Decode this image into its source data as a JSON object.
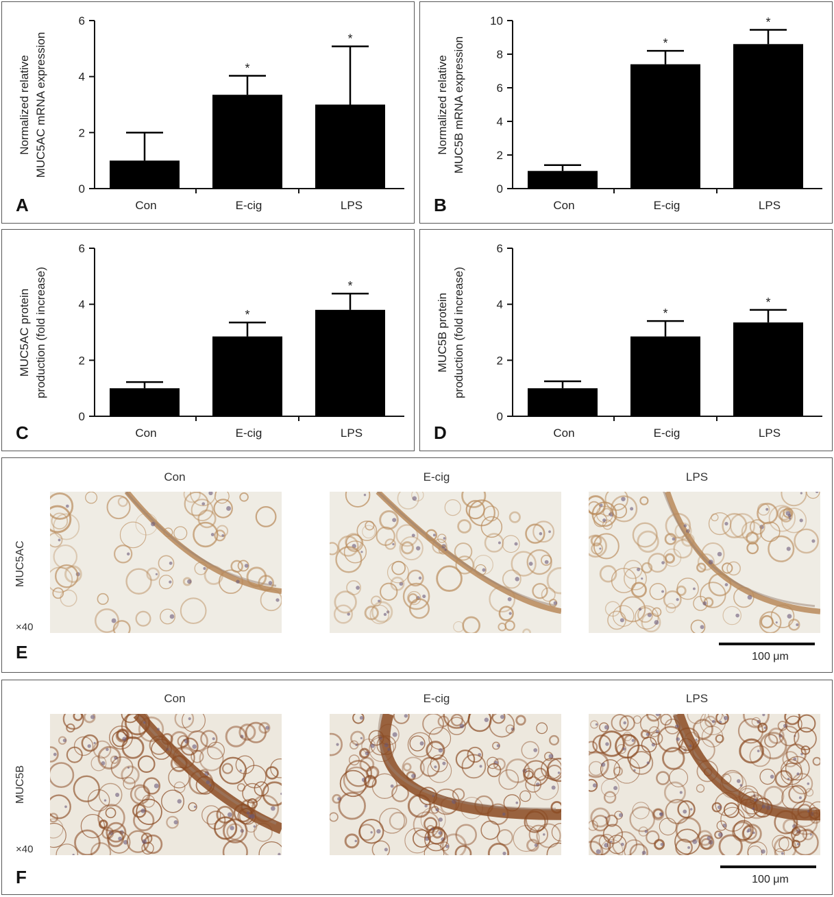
{
  "chart_data": [
    {
      "id": "A",
      "type": "bar",
      "panel_label": "A",
      "categories": [
        "Con",
        "E-cig",
        "LPS"
      ],
      "values": [
        1.0,
        3.35,
        3.0
      ],
      "errors": [
        1.0,
        0.68,
        2.08
      ],
      "significant": [
        "",
        "*",
        "*"
      ],
      "ylim": [
        0,
        6
      ],
      "yticks": [
        "0",
        "2",
        "4",
        "6"
      ],
      "ylabel_lines": [
        "Normalized relative",
        "MUC5AC mRNA expression"
      ]
    },
    {
      "id": "B",
      "type": "bar",
      "panel_label": "B",
      "categories": [
        "Con",
        "E-cig",
        "LPS"
      ],
      "values": [
        1.05,
        7.4,
        8.6
      ],
      "errors": [
        0.35,
        0.8,
        0.85
      ],
      "significant": [
        "",
        "*",
        "*"
      ],
      "ylim": [
        0,
        10
      ],
      "yticks": [
        "0",
        "2",
        "4",
        "6",
        "8",
        "10"
      ],
      "ylabel_lines": [
        "Normalized relative",
        "MUC5B mRNA expression"
      ]
    },
    {
      "id": "C",
      "type": "bar",
      "panel_label": "C",
      "categories": [
        "Con",
        "E-cig",
        "LPS"
      ],
      "values": [
        1.0,
        2.85,
        3.8
      ],
      "errors": [
        0.22,
        0.5,
        0.58
      ],
      "significant": [
        "",
        "*",
        "*"
      ],
      "ylim": [
        0,
        6
      ],
      "yticks": [
        "0",
        "2",
        "4",
        "6"
      ],
      "ylabel_lines": [
        "MUC5AC protein",
        "production (fold increase)"
      ]
    },
    {
      "id": "D",
      "type": "bar",
      "panel_label": "D",
      "categories": [
        "Con",
        "E-cig",
        "LPS"
      ],
      "values": [
        1.0,
        2.85,
        3.35
      ],
      "errors": [
        0.25,
        0.55,
        0.45
      ],
      "significant": [
        "",
        "*",
        "*"
      ],
      "ylim": [
        0,
        6
      ],
      "yticks": [
        "0",
        "2",
        "4",
        "6"
      ],
      "ylabel_lines": [
        "MUC5B protein",
        "production (fold increase)"
      ]
    }
  ],
  "micrographs": {
    "E": {
      "panel_label": "E",
      "row_label": "MUC5AC",
      "magnification": "×40",
      "columns": [
        "Con",
        "E-cig",
        "LPS"
      ],
      "scale_bar": "100 μm",
      "stain_color": "#b88a5a",
      "background_color": "#efece4"
    },
    "F": {
      "panel_label": "F",
      "row_label": "MUC5B",
      "magnification": "×40",
      "columns": [
        "Con",
        "E-cig",
        "LPS"
      ],
      "scale_bar": "100 μm",
      "stain_color": "#8a4a22",
      "background_color": "#ede8de"
    }
  }
}
